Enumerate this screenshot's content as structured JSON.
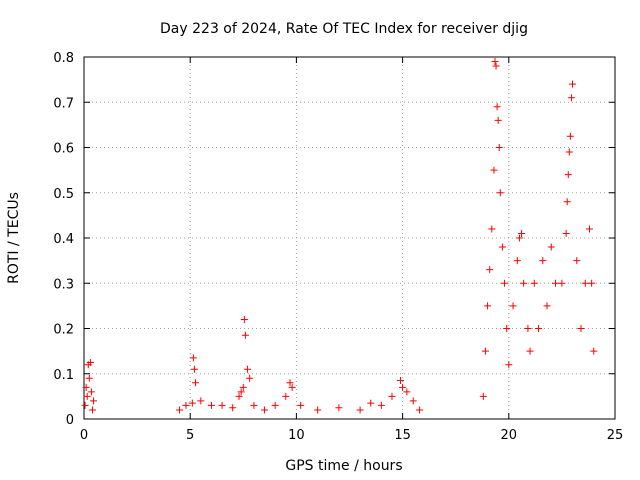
{
  "chart_data": {
    "type": "scatter",
    "title": "Day 223 of 2024, Rate Of TEC Index for receiver djig",
    "xlabel": "GPS time / hours",
    "ylabel": "ROTI / TECUs",
    "xlim": [
      0,
      25
    ],
    "ylim": [
      0,
      0.8
    ],
    "x_ticks": [
      "0",
      "5",
      "10",
      "15",
      "20",
      "25"
    ],
    "y_ticks": [
      "0",
      "0.1",
      "0.2",
      "0.3",
      "0.4",
      "0.5",
      "0.6",
      "0.7",
      "0.8"
    ],
    "grid": true,
    "marker": "+",
    "color": "#ff0000",
    "series": [
      {
        "values": [
          [
            0.05,
            0.03
          ],
          [
            0.1,
            0.07
          ],
          [
            0.15,
            0.05
          ],
          [
            0.2,
            0.12
          ],
          [
            0.25,
            0.09
          ],
          [
            0.3,
            0.125
          ],
          [
            0.35,
            0.06
          ],
          [
            0.4,
            0.02
          ],
          [
            0.45,
            0.04
          ],
          [
            4.5,
            0.02
          ],
          [
            4.8,
            0.03
          ],
          [
            5.1,
            0.035
          ],
          [
            5.15,
            0.135
          ],
          [
            5.2,
            0.11
          ],
          [
            5.25,
            0.08
          ],
          [
            5.5,
            0.04
          ],
          [
            6.0,
            0.03
          ],
          [
            6.5,
            0.03
          ],
          [
            7.0,
            0.025
          ],
          [
            7.3,
            0.05
          ],
          [
            7.4,
            0.06
          ],
          [
            7.5,
            0.07
          ],
          [
            7.55,
            0.22
          ],
          [
            7.6,
            0.185
          ],
          [
            7.7,
            0.11
          ],
          [
            7.8,
            0.09
          ],
          [
            8.0,
            0.03
          ],
          [
            8.5,
            0.02
          ],
          [
            9.0,
            0.03
          ],
          [
            9.5,
            0.05
          ],
          [
            9.7,
            0.08
          ],
          [
            9.8,
            0.07
          ],
          [
            10.2,
            0.03
          ],
          [
            11.0,
            0.02
          ],
          [
            12.0,
            0.025
          ],
          [
            13.0,
            0.02
          ],
          [
            13.5,
            0.035
          ],
          [
            14.0,
            0.03
          ],
          [
            14.5,
            0.05
          ],
          [
            14.9,
            0.085
          ],
          [
            15.0,
            0.07
          ],
          [
            15.2,
            0.06
          ],
          [
            15.5,
            0.04
          ],
          [
            15.8,
            0.02
          ],
          [
            18.8,
            0.05
          ],
          [
            18.9,
            0.15
          ],
          [
            19.0,
            0.25
          ],
          [
            19.1,
            0.33
          ],
          [
            19.2,
            0.42
          ],
          [
            19.3,
            0.55
          ],
          [
            19.35,
            0.79
          ],
          [
            19.4,
            0.78
          ],
          [
            19.45,
            0.69
          ],
          [
            19.5,
            0.66
          ],
          [
            19.55,
            0.6
          ],
          [
            19.6,
            0.5
          ],
          [
            19.7,
            0.38
          ],
          [
            19.8,
            0.3
          ],
          [
            19.9,
            0.2
          ],
          [
            20.0,
            0.12
          ],
          [
            20.2,
            0.25
          ],
          [
            20.4,
            0.35
          ],
          [
            20.5,
            0.4
          ],
          [
            20.6,
            0.41
          ],
          [
            20.7,
            0.3
          ],
          [
            20.9,
            0.2
          ],
          [
            21.0,
            0.15
          ],
          [
            21.2,
            0.3
          ],
          [
            21.4,
            0.2
          ],
          [
            21.6,
            0.35
          ],
          [
            21.8,
            0.25
          ],
          [
            22.0,
            0.38
          ],
          [
            22.2,
            0.3
          ],
          [
            22.5,
            0.3
          ],
          [
            22.7,
            0.41
          ],
          [
            22.75,
            0.48
          ],
          [
            22.8,
            0.54
          ],
          [
            22.85,
            0.59
          ],
          [
            22.9,
            0.625
          ],
          [
            22.95,
            0.71
          ],
          [
            23.0,
            0.74
          ],
          [
            23.2,
            0.35
          ],
          [
            23.4,
            0.2
          ],
          [
            23.6,
            0.3
          ],
          [
            23.8,
            0.42
          ],
          [
            23.9,
            0.3
          ],
          [
            24.0,
            0.15
          ]
        ]
      }
    ]
  }
}
